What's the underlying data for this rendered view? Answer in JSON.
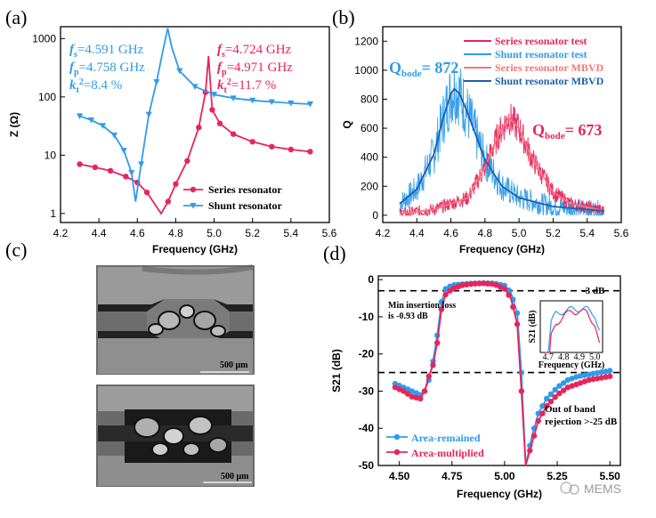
{
  "colors": {
    "series": "#e8245c",
    "shunt": "#2f9bea",
    "series_model": "#f07878",
    "shunt_model": "#1f5fa8",
    "dash": "#000000"
  },
  "panel_a": {
    "label": "(a)",
    "ann_shunt": [
      "=4.591 GHz",
      "=4.758 GHz",
      "=8.4 %"
    ],
    "ann_series": [
      "=4.724 GHz",
      "=4.971 GHz",
      "=11.7 %"
    ]
  },
  "panel_b": {
    "label": "(b)",
    "q_shunt": "872",
    "q_series": "673"
  },
  "panel_c": {
    "label": "(c)",
    "scale_top": "500 μm",
    "scale_bottom": "500 μm"
  },
  "panel_d": {
    "label": "(d)",
    "marker_3db": "-3 dB",
    "min_il": [
      "Min insertion loss",
      "is -0.93 dB"
    ],
    "oob": [
      "Out of band",
      "rejection >-25 dB"
    ]
  },
  "watermark": "MEMS",
  "chart_data": [
    {
      "type": "line",
      "panel": "(a)",
      "xlabel": "Frequency (GHz)",
      "ylabel": "Z (Ω)",
      "yscale": "log",
      "xlim": [
        4.2,
        5.6
      ],
      "ylim": [
        0.7,
        1600
      ],
      "xticks": [
        4.2,
        4.4,
        4.6,
        4.8,
        5.0,
        5.2,
        5.4,
        5.6
      ],
      "xtick_labels": [
        "4.2",
        "4.4",
        "4.6",
        "4.8",
        "5.0",
        "5.2",
        "5.4",
        "5.6"
      ],
      "yticks": [
        1,
        10,
        100,
        1000
      ],
      "ytick_labels": [
        "1",
        "10",
        "100",
        "1000"
      ],
      "legend": [
        "Series resonator",
        "Shunt resonator"
      ],
      "series": [
        {
          "name": "Series resonator",
          "x": [
            4.3,
            4.38,
            4.46,
            4.54,
            4.6,
            4.65,
            4.7,
            4.724,
            4.76,
            4.8,
            4.86,
            4.92,
            4.955,
            4.971,
            4.99,
            5.03,
            5.1,
            5.2,
            5.3,
            5.4,
            5.5
          ],
          "y": [
            7,
            6.2,
            5.4,
            4.3,
            3.4,
            2.3,
            1.3,
            1.0,
            1.6,
            3.2,
            8,
            30,
            120,
            500,
            60,
            35,
            23,
            17,
            14,
            12.5,
            11.5
          ]
        },
        {
          "name": "Shunt resonator",
          "x": [
            4.3,
            4.36,
            4.42,
            4.48,
            4.53,
            4.57,
            4.591,
            4.62,
            4.66,
            4.7,
            4.73,
            4.758,
            4.78,
            4.82,
            4.9,
            5.0,
            5.1,
            5.2,
            5.3,
            5.4,
            5.5
          ],
          "y": [
            47,
            40,
            32,
            22,
            12,
            5,
            1.6,
            7,
            50,
            180,
            550,
            1500,
            700,
            280,
            150,
            110,
            95,
            87,
            82,
            78,
            75
          ]
        }
      ]
    },
    {
      "type": "line",
      "panel": "(b)",
      "xlabel": "Frequency (GHz)",
      "ylabel": "Q",
      "xlim": [
        4.2,
        5.6
      ],
      "ylim": [
        -50,
        1300
      ],
      "xticks": [
        4.2,
        4.4,
        4.6,
        4.8,
        5.0,
        5.2,
        5.4,
        5.6
      ],
      "xtick_labels": [
        "4.2",
        "4.4",
        "4.6",
        "4.8",
        "5.0",
        "5.2",
        "5.4",
        "5.6"
      ],
      "yticks": [
        0,
        200,
        400,
        600,
        800,
        1000,
        1200
      ],
      "ytick_labels": [
        "0",
        "200",
        "400",
        "600",
        "800",
        "1000",
        "1200"
      ],
      "legend": [
        "Series resonator test",
        "Shunt resonator test",
        "Series resonator MBVD",
        "Shunt resonator MBVD"
      ],
      "series": [
        {
          "name": "Shunt resonator MBVD",
          "x": [
            4.3,
            4.4,
            4.5,
            4.55,
            4.6,
            4.62,
            4.65,
            4.7,
            4.8,
            4.9,
            5.0,
            5.2,
            5.5
          ],
          "y": [
            80,
            180,
            420,
            650,
            840,
            872,
            840,
            700,
            380,
            200,
            120,
            60,
            30
          ]
        },
        {
          "name": "Series resonator MBVD",
          "x": [
            4.3,
            4.5,
            4.7,
            4.8,
            4.88,
            4.94,
            5.0,
            5.08,
            5.2,
            5.3,
            5.5
          ],
          "y": [
            10,
            40,
            120,
            330,
            560,
            673,
            600,
            380,
            160,
            80,
            30
          ]
        }
      ]
    },
    {
      "type": "line",
      "panel": "(d)",
      "xlabel": "Frequency (GHz)",
      "ylabel": "S21 (dB)",
      "xlim": [
        4.4,
        5.55
      ],
      "ylim": [
        -50,
        1
      ],
      "xticks": [
        4.5,
        4.75,
        5.0,
        5.25,
        5.5
      ],
      "xtick_labels": [
        "4.50",
        "4.75",
        "5.00",
        "5.25",
        "5.50"
      ],
      "yticks": [
        0,
        -10,
        -20,
        -30,
        -40,
        -50
      ],
      "ytick_labels": [
        "0",
        "-10",
        "-20",
        "-30",
        "-40",
        "-50"
      ],
      "reference_lines": [
        -3,
        -25
      ],
      "legend": [
        "Area-remained",
        "Area-multiplied"
      ],
      "series": [
        {
          "name": "Area-remained",
          "x": [
            4.48,
            4.52,
            4.56,
            4.6,
            4.62,
            4.64,
            4.66,
            4.68,
            4.7,
            4.72,
            4.75,
            4.8,
            4.85,
            4.9,
            4.95,
            5.0,
            5.03,
            5.06,
            5.08,
            5.1,
            5.13,
            5.16,
            5.2,
            5.25,
            5.3,
            5.35,
            5.4,
            5.45,
            5.5
          ],
          "y": [
            -28,
            -29,
            -30,
            -31,
            -30,
            -27,
            -22,
            -15,
            -6,
            -2.5,
            -1.5,
            -1.2,
            -1.0,
            -0.93,
            -1.0,
            -1.6,
            -3.5,
            -9,
            -25,
            -50,
            -42,
            -36,
            -32,
            -29,
            -27,
            -26,
            -25.5,
            -25,
            -24.5
          ]
        },
        {
          "name": "Area-multiplied",
          "x": [
            4.48,
            4.52,
            4.56,
            4.6,
            4.62,
            4.64,
            4.66,
            4.68,
            4.7,
            4.72,
            4.75,
            4.8,
            4.85,
            4.9,
            4.95,
            5.0,
            5.03,
            5.06,
            5.08,
            5.1,
            5.13,
            5.16,
            5.2,
            5.25,
            5.3,
            5.35,
            5.4,
            5.45,
            5.5
          ],
          "y": [
            -29,
            -30,
            -31.5,
            -32,
            -30,
            -26,
            -23,
            -17,
            -8,
            -4,
            -2.5,
            -1.5,
            -1.1,
            -1.0,
            -1.2,
            -2.5,
            -5,
            -12,
            -30,
            -50,
            -44,
            -38,
            -34,
            -31,
            -29,
            -28,
            -27,
            -26.5,
            -26
          ]
        }
      ],
      "inset": {
        "ylabel": "S21 (dB)",
        "xlabel": "Frequency (GHz)",
        "xtick_labels": [
          "4.7",
          "4.8",
          "4.9",
          "5.0"
        ]
      }
    }
  ]
}
